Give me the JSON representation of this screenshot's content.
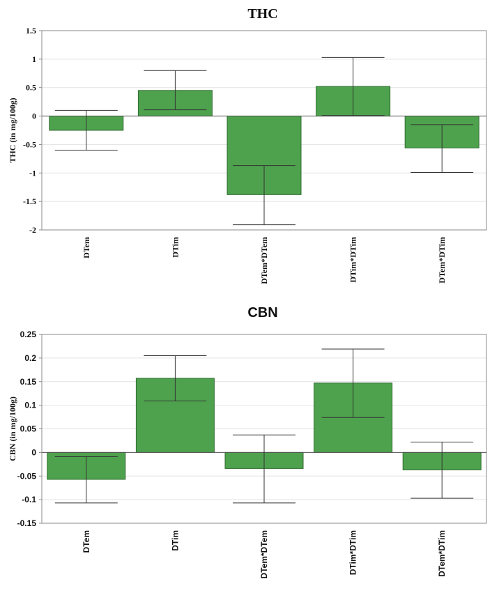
{
  "colors": {
    "bar_fill": "#4ea24e",
    "bar_stroke": "#2f6b2f",
    "grid": "#e2e2e2",
    "axis": "#8a8a8a",
    "error": "#333333"
  },
  "chart_data": [
    {
      "type": "bar",
      "title": "THC",
      "ylabel": "THC (in mg/100g)",
      "xlabel": "",
      "ylim": [
        -2,
        1.5
      ],
      "yticks": [
        1.5,
        1,
        0.5,
        0,
        -0.5,
        -1,
        -1.5,
        -2
      ],
      "ytick_labels": [
        "1.5",
        "1",
        "0.5",
        "0",
        "-0.5",
        "-1",
        "-1.5",
        "-2"
      ],
      "grid": true,
      "categories": [
        "DTem",
        "DTim",
        "DTem*DTem",
        "DTim*DTim",
        "DTem*DTim"
      ],
      "values": [
        -0.25,
        0.45,
        -1.38,
        0.52,
        -0.56
      ],
      "error_low": [
        -0.6,
        0.11,
        -1.91,
        0.01,
        -0.99
      ],
      "error_high": [
        0.1,
        0.8,
        -0.87,
        1.03,
        -0.15
      ]
    },
    {
      "type": "bar",
      "title": "CBN",
      "ylabel": "CBN (in mg/100g)",
      "xlabel": "",
      "ylim": [
        -0.15,
        0.25
      ],
      "yticks": [
        0.25,
        0.2,
        0.15,
        0.1,
        0.05,
        0,
        -0.05,
        -0.1,
        -0.15
      ],
      "ytick_labels": [
        "0.25",
        "0.2",
        "0.15",
        "0.1",
        "0.05",
        "0",
        "-0.05",
        "-0.1",
        "-0.15"
      ],
      "grid": true,
      "categories": [
        "DTem",
        "DTim",
        "DTem*DTem",
        "DTim*DTim",
        "DTem*DTim"
      ],
      "values": [
        -0.057,
        0.157,
        -0.034,
        0.147,
        -0.037
      ],
      "error_low": [
        -0.107,
        0.109,
        -0.107,
        0.074,
        -0.097
      ],
      "error_high": [
        -0.009,
        0.205,
        0.037,
        0.219,
        0.022
      ]
    }
  ]
}
